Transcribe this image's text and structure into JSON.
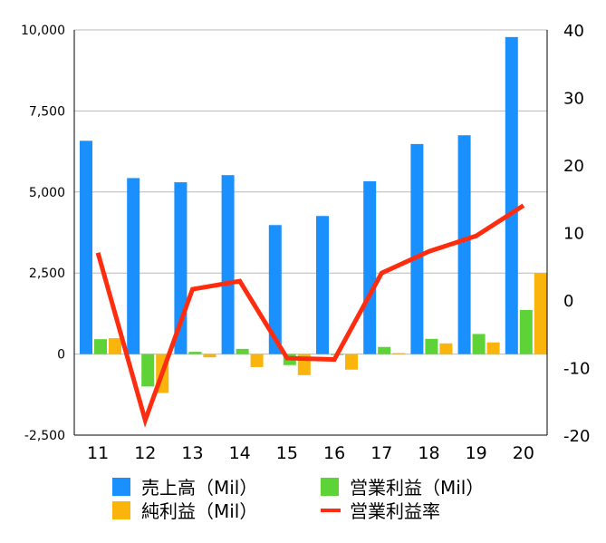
{
  "chart_data": {
    "type": "bar",
    "categories": [
      "11",
      "12",
      "13",
      "14",
      "15",
      "16",
      "17",
      "18",
      "19",
      "20"
    ],
    "series": [
      {
        "name": "売上高（Mil）",
        "kind": "bar",
        "axis": "left",
        "color": "#1a90fe",
        "values": [
          6580,
          5430,
          5300,
          5520,
          3980,
          4260,
          5330,
          6480,
          6750,
          9780
        ]
      },
      {
        "name": "営業利益（Mil）",
        "kind": "bar",
        "axis": "left",
        "color": "#5dd337",
        "values": [
          460,
          -1000,
          70,
          160,
          -340,
          -30,
          220,
          470,
          620,
          1360
        ]
      },
      {
        "name": "純利益（Mil）",
        "kind": "bar",
        "axis": "left",
        "color": "#fab40c",
        "values": [
          490,
          -1200,
          -100,
          -400,
          -650,
          -480,
          30,
          330,
          360,
          2500
        ]
      },
      {
        "name": "営業利益率",
        "kind": "line",
        "axis": "right",
        "color": "#ff2d0f",
        "values": [
          7.0,
          -17.8,
          1.6,
          2.8,
          -8.6,
          -8.8,
          4.0,
          7.2,
          9.5,
          14.0
        ]
      }
    ],
    "y_left": {
      "min": -2500,
      "max": 10000,
      "ticks": [
        -2500,
        0,
        2500,
        5000,
        7500,
        10000
      ],
      "tick_labels": [
        "-2,500",
        "0",
        "2,500",
        "5,000",
        "7,500",
        "10,000"
      ]
    },
    "y_right": {
      "min": -20,
      "max": 40,
      "ticks": [
        -20,
        -10,
        0,
        10,
        20,
        30,
        40
      ],
      "tick_labels": [
        "-20",
        "-10",
        "0",
        "10",
        "20",
        "30",
        "40"
      ]
    },
    "grid": true,
    "legend": {
      "position": "bottom",
      "items": [
        {
          "label": "売上高（Mil）",
          "swatch": "square",
          "color": "#1a90fe"
        },
        {
          "label": "営業利益（Mil）",
          "swatch": "square",
          "color": "#5dd337"
        },
        {
          "label": "純利益（Mil）",
          "swatch": "square",
          "color": "#fab40c"
        },
        {
          "label": "営業利益率",
          "swatch": "line",
          "color": "#ff2d0f"
        }
      ]
    }
  }
}
